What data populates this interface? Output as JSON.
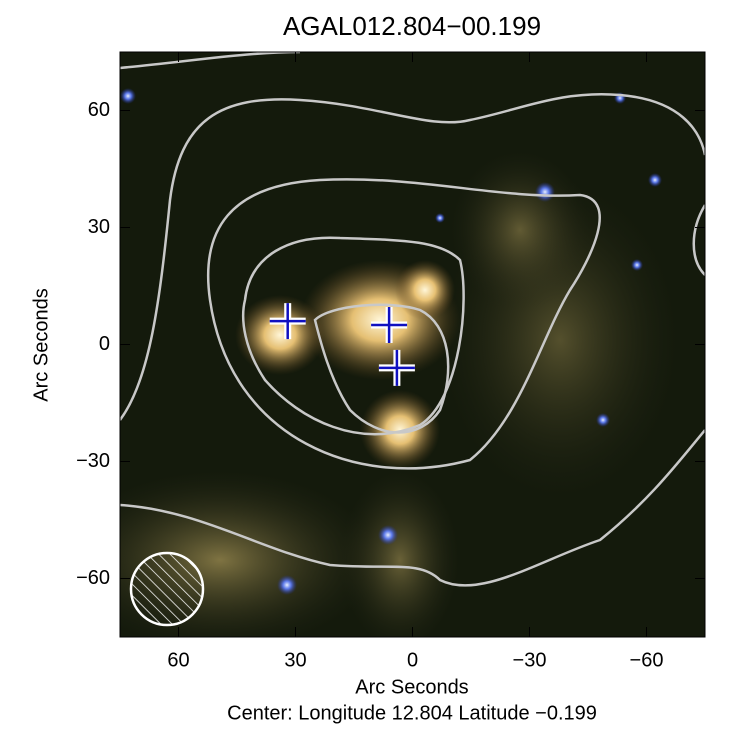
{
  "chart_data": {
    "type": "scatter",
    "title": "AGAL012.804−00.199",
    "xlabel": "Arc Seconds",
    "ylabel": "Arc Seconds",
    "caption": "Center:  Longitude 12.804 Latitude −0.199",
    "x": [
      32,
      6,
      4
    ],
    "y": [
      6,
      5,
      -6
    ],
    "color": "#1010c0",
    "xlim": [
      75,
      -75
    ],
    "ylim": [
      -75,
      75
    ],
    "xticks": [
      60,
      30,
      0,
      {
        "value": -30,
        "label": "−30"
      },
      {
        "value": -60,
        "label": "−60"
      }
    ],
    "yticks": [
      {
        "value": -60,
        "label": "−60"
      },
      {
        "value": -30,
        "label": "−30"
      },
      0,
      30,
      60
    ]
  }
}
